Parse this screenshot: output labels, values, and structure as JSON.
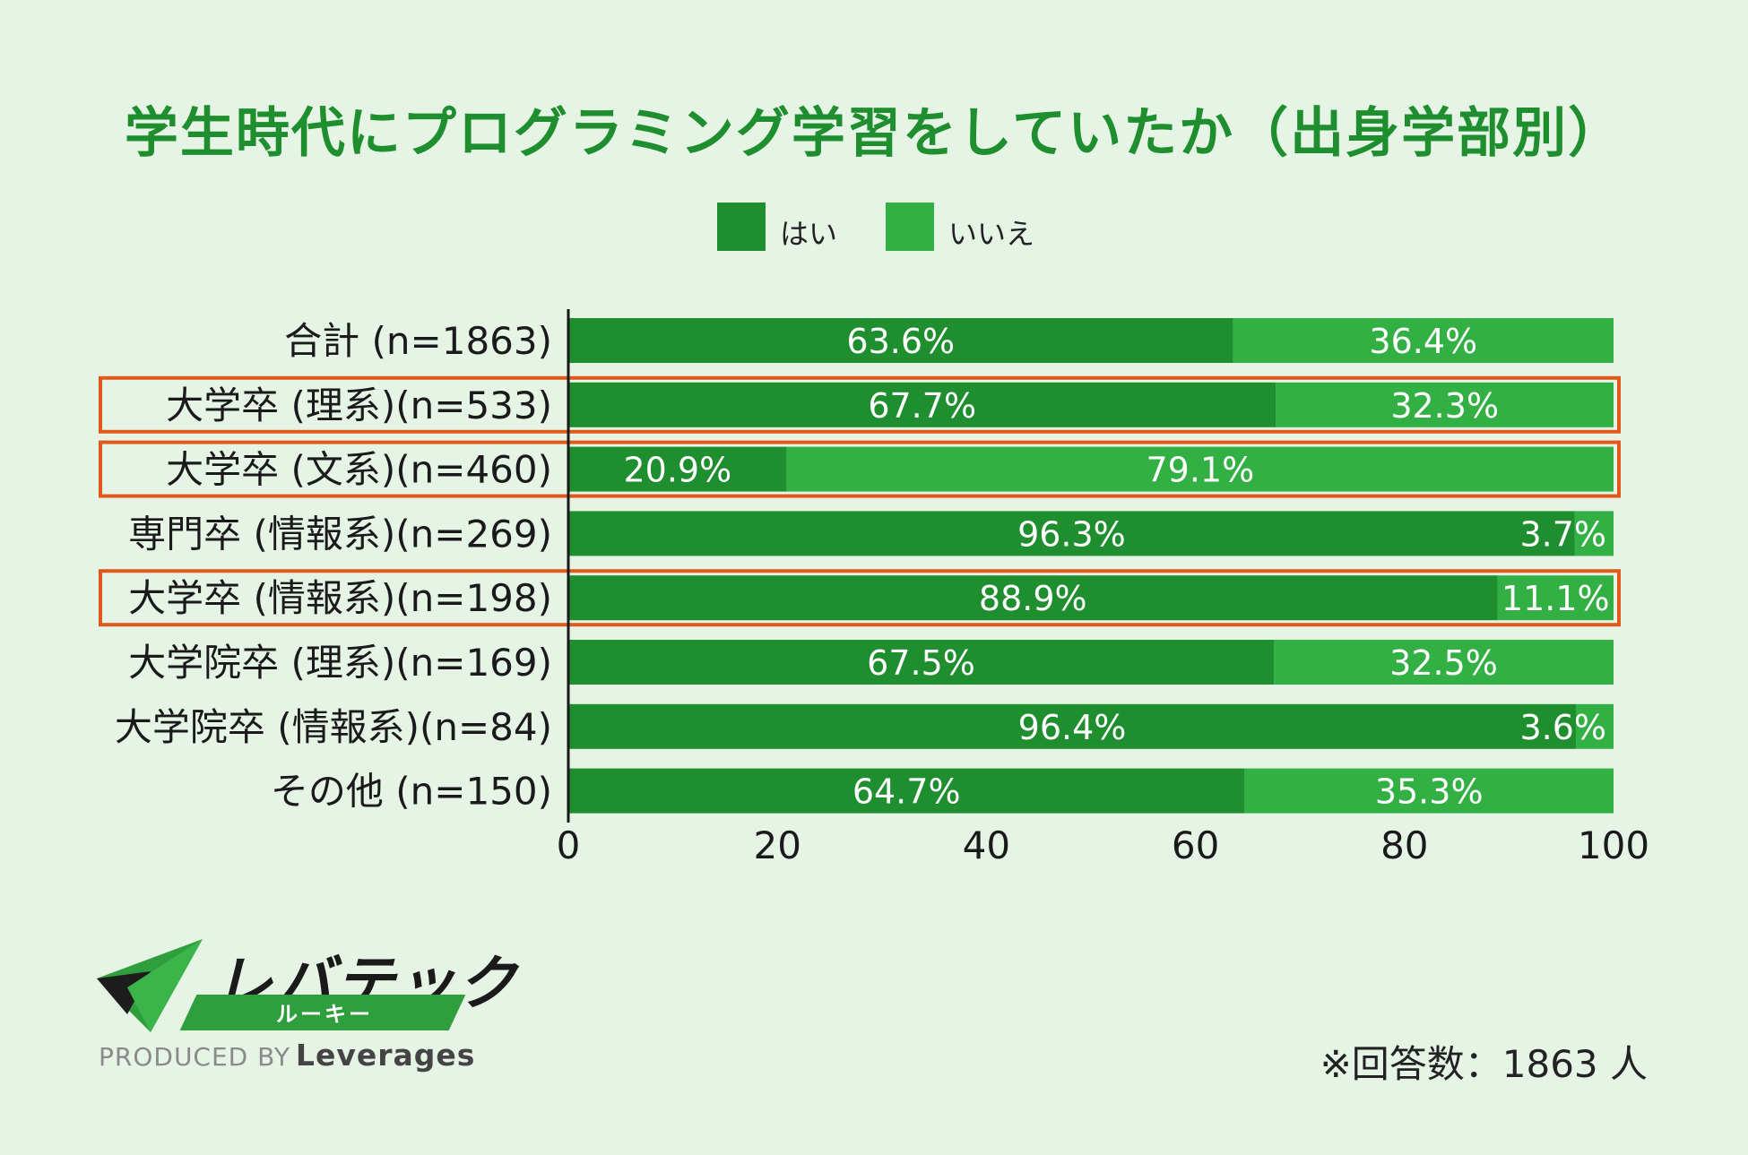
{
  "title": "学生時代にプログラミング学習をしていたか（出身学部別）",
  "colors": {
    "background": "#e6f4e6",
    "yes": "#1e8e2e",
    "no": "#33b044",
    "highlight": "#e05a1c",
    "title": "#1e8e2e"
  },
  "chart_data": {
    "type": "bar",
    "orientation": "horizontal-stacked-100",
    "title": "学生時代にプログラミング学習をしていたか（出身学部別）",
    "legend": [
      "はい",
      "いいえ"
    ],
    "legend_position": "top-center",
    "categories": [
      "合計 (n=1863)",
      "大学卒 (理系)(n=533)",
      "大学卒 (文系)(n=460)",
      "専門卒 (情報系)(n=269)",
      "大学卒 (情報系)(n=198)",
      "大学院卒 (理系)(n=169)",
      "大学院卒 (情報系)(n=84)",
      "その他 (n=150)"
    ],
    "series": [
      {
        "name": "はい",
        "values": [
          63.6,
          67.7,
          20.9,
          96.3,
          88.9,
          67.5,
          96.4,
          64.7
        ]
      },
      {
        "name": "いいえ",
        "values": [
          36.4,
          32.3,
          79.1,
          3.7,
          11.1,
          32.5,
          3.6,
          35.3
        ]
      }
    ],
    "highlighted": [
      false,
      true,
      true,
      false,
      true,
      false,
      false,
      false
    ],
    "xlim": [
      0,
      100
    ],
    "xticks": [
      "0",
      "20",
      "40",
      "60",
      "80",
      "100"
    ],
    "value_suffix": "%",
    "xlabel": "",
    "ylabel": ""
  },
  "logo": {
    "wordmark": "レバテック",
    "sub": "ルーキー",
    "produced_by": "PRODUCED BY",
    "company": "Leverages"
  },
  "note": "※回答数：1863 人"
}
